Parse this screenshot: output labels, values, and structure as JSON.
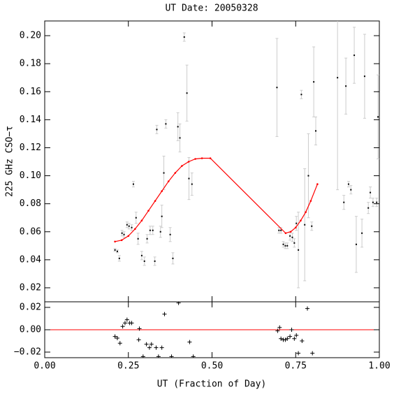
{
  "chart_data": [
    {
      "type": "scatter",
      "title": "UT Date: 20050328",
      "ylabel": "225 GHz CSO−τ",
      "xlim": [
        0,
        1
      ],
      "ylim": [
        0.01,
        0.2105
      ],
      "yticks": [
        {
          "value": 0.02,
          "label": "0.02"
        },
        {
          "value": 0.04,
          "label": "0.04"
        },
        {
          "value": 0.06,
          "label": "0.06"
        },
        {
          "value": 0.08,
          "label": "0.08"
        },
        {
          "value": 0.1,
          "label": "0.10"
        },
        {
          "value": 0.12,
          "label": "0.12"
        },
        {
          "value": 0.14,
          "label": "0.14"
        },
        {
          "value": 0.16,
          "label": "0.16"
        },
        {
          "value": 0.18,
          "label": "0.18"
        },
        {
          "value": 0.2,
          "label": "0.20"
        }
      ],
      "series": [
        {
          "type": "errorbar",
          "color": "#000000",
          "error_color": "#cccccc",
          "x": [
            0.21,
            0.217,
            0.223,
            0.231,
            0.237,
            0.246,
            0.252,
            0.26,
            0.265,
            0.273,
            0.279,
            0.29,
            0.298,
            0.306,
            0.315,
            0.323,
            0.329,
            0.335,
            0.346,
            0.35,
            0.356,
            0.362,
            0.375,
            0.383,
            0.398,
            0.404,
            0.417,
            0.425,
            0.431,
            0.44,
            0.694,
            0.7,
            0.706,
            0.713,
            0.719,
            0.725,
            0.733,
            0.74,
            0.746,
            0.752,
            0.758,
            0.767,
            0.777,
            0.788,
            0.798,
            0.804,
            0.81,
            0.875,
            0.894,
            0.9,
            0.908,
            0.915,
            0.925,
            0.931,
            0.948,
            0.956,
            0.967,
            0.973,
            0.981,
            0.992,
            0.996
          ],
          "values": [
            0.047,
            0.046,
            0.041,
            0.059,
            0.058,
            0.065,
            0.064,
            0.063,
            0.094,
            0.07,
            0.055,
            0.043,
            0.039,
            0.055,
            0.061,
            0.061,
            0.039,
            0.133,
            0.06,
            0.071,
            0.102,
            0.137,
            0.058,
            0.041,
            0.135,
            0.127,
            0.199,
            0.159,
            0.098,
            0.094,
            0.163,
            0.061,
            0.061,
            0.051,
            0.05,
            0.05,
            0.057,
            0.056,
            0.052,
            0.066,
            0.047,
            0.158,
            0.065,
            0.1,
            0.064,
            0.167,
            0.132,
            0.17,
            0.081,
            0.164,
            0.094,
            0.09,
            0.186,
            0.051,
            0.059,
            0.171,
            0.077,
            0.088,
            0.081,
            0.081,
            0.142
          ],
          "errors": [
            0.001,
            0.001,
            0.002,
            0.002,
            0.002,
            0.002,
            0.002,
            0.002,
            0.002,
            0.004,
            0.004,
            0.003,
            0.003,
            0.003,
            0.003,
            0.003,
            0.003,
            0.003,
            0.004,
            0.008,
            0.012,
            0.003,
            0.005,
            0.004,
            0.01,
            0.01,
            0.003,
            0.02,
            0.015,
            0.008,
            0.035,
            0.002,
            0.002,
            0.002,
            0.002,
            0.002,
            0.003,
            0.003,
            0.003,
            0.005,
            0.027,
            0.003,
            0.04,
            0.03,
            0.003,
            0.025,
            0.01,
            0.08,
            0.005,
            0.02,
            0.002,
            0.003,
            0.02,
            0.02,
            0.01,
            0.03,
            0.004,
            0.004,
            0.003,
            0.003,
            0.03
          ]
        },
        {
          "type": "line",
          "color": "#ff0000",
          "x": [
            0.21,
            0.23,
            0.25,
            0.27,
            0.29,
            0.31,
            0.33,
            0.35,
            0.37,
            0.39,
            0.41,
            0.43,
            0.45,
            0.47,
            0.495,
            0.72,
            0.735,
            0.75,
            0.765,
            0.78,
            0.795,
            0.815
          ],
          "values": [
            0.053,
            0.054,
            0.057,
            0.062,
            0.068,
            0.075,
            0.082,
            0.089,
            0.096,
            0.102,
            0.107,
            0.11,
            0.112,
            0.1125,
            0.1125,
            0.059,
            0.06,
            0.063,
            0.068,
            0.074,
            0.082,
            0.094
          ]
        }
      ]
    },
    {
      "type": "scatter",
      "xlabel": "UT (Fraction of Day)",
      "xlim": [
        0,
        1
      ],
      "ylim": [
        -0.025,
        0.025
      ],
      "xticks": [
        {
          "value": 0,
          "label": "0.00"
        },
        {
          "value": 0.25,
          "label": "0.25"
        },
        {
          "value": 0.5,
          "label": "0.50"
        },
        {
          "value": 0.75,
          "label": "0.75"
        },
        {
          "value": 1,
          "label": "1.00"
        }
      ],
      "yticks": [
        {
          "value": -0.02,
          "label": "−0.02"
        },
        {
          "value": 0,
          "label": "0.00"
        },
        {
          "value": 0.02,
          "label": "0.02"
        }
      ],
      "hline": 0,
      "hline_color": "#ff0000",
      "series": [
        {
          "type": "points",
          "color": "#000000",
          "x": [
            0.21,
            0.217,
            0.225,
            0.233,
            0.24,
            0.246,
            0.254,
            0.26,
            0.283,
            0.281,
            0.294,
            0.304,
            0.313,
            0.319,
            0.333,
            0.34,
            0.35,
            0.358,
            0.379,
            0.4,
            0.433,
            0.444,
            0.696,
            0.702,
            0.706,
            0.713,
            0.719,
            0.725,
            0.733,
            0.738,
            0.746,
            0.752,
            0.758,
            0.769,
            0.785,
            0.8
          ],
          "values": [
            -0.006,
            -0.0075,
            -0.012,
            0.003,
            0.006,
            0.009,
            0.006,
            0.006,
            0.001,
            -0.009,
            -0.024,
            -0.013,
            -0.016,
            -0.013,
            -0.016,
            -0.024,
            -0.016,
            0.014,
            -0.024,
            0.024,
            -0.011,
            -0.024,
            -0.001,
            0.002,
            -0.008,
            -0.009,
            -0.009,
            -0.008,
            -0.006,
            0,
            -0.008,
            -0.005,
            -0.021,
            -0.01,
            0.019,
            -0.021
          ]
        }
      ]
    }
  ]
}
